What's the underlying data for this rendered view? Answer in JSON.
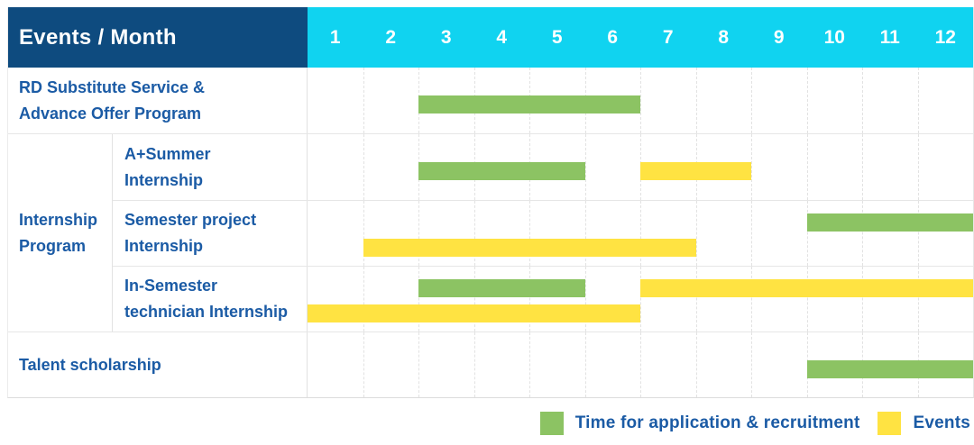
{
  "colors": {
    "header_bg": "#0e4b7f",
    "months_bg": "#10d3f0",
    "header_text": "#ffffff",
    "label_text": "#1b5ba5",
    "grid_line": "#e2e2e2",
    "row_line": "#e6e6e6",
    "recruitment_green": "#8cc363",
    "events_yellow": "#ffe342"
  },
  "header": {
    "label": "Events / Month",
    "months": [
      "1",
      "2",
      "3",
      "4",
      "5",
      "6",
      "7",
      "8",
      "9",
      "10",
      "11",
      "12"
    ]
  },
  "display": {
    "group_label_lines": [
      "Internship",
      "Program"
    ]
  },
  "chart_data": {
    "type": "bar",
    "subtype": "gantt",
    "title": "Events / Month",
    "x_axis": {
      "label": "Month",
      "ticks": [
        1,
        2,
        3,
        4,
        5,
        6,
        7,
        8,
        9,
        10,
        11,
        12
      ],
      "range": [
        1,
        12
      ]
    },
    "grid": true,
    "legend_position": "bottom-right",
    "legend": [
      {
        "key": "recruitment",
        "label": "Time for application & recruitment",
        "color": "#8cc363"
      },
      {
        "key": "events",
        "label": "Events",
        "color": "#ffe342"
      }
    ],
    "rows": [
      {
        "group": null,
        "label": "RD Substitute Service & Advance Offer Program",
        "label_lines": [
          "RD Substitute Service &",
          "Advance Offer Program"
        ],
        "bars": [
          {
            "series": "recruitment",
            "start_month": 3,
            "end_month": 6,
            "lane": 0
          }
        ]
      },
      {
        "group": "Internship Program",
        "label": "A+Summer Internship",
        "label_lines": [
          "A+Summer",
          "Internship"
        ],
        "bars": [
          {
            "series": "recruitment",
            "start_month": 3,
            "end_month": 5,
            "lane": 0
          },
          {
            "series": "events",
            "start_month": 7,
            "end_month": 8,
            "lane": 0
          }
        ]
      },
      {
        "group": "Internship Program",
        "label": "Semester project Internship",
        "label_lines": [
          "Semester project",
          "Internship"
        ],
        "bars": [
          {
            "series": "recruitment",
            "start_month": 10,
            "end_month": 12,
            "lane": 0
          },
          {
            "series": "events",
            "start_month": 2,
            "end_month": 7,
            "lane": 1
          }
        ]
      },
      {
        "group": "Internship Program",
        "label": "In-Semester technician Internship",
        "label_lines": [
          "In-Semester",
          "technician Internship"
        ],
        "bars": [
          {
            "series": "recruitment",
            "start_month": 3,
            "end_month": 5,
            "lane": 0
          },
          {
            "series": "events",
            "start_month": 7,
            "end_month": 12,
            "lane": 0
          },
          {
            "series": "events",
            "start_month": 1,
            "end_month": 6,
            "lane": 1
          }
        ]
      },
      {
        "group": null,
        "label": "Talent scholarship",
        "label_lines": [
          "Talent scholarship"
        ],
        "bars": [
          {
            "series": "recruitment",
            "start_month": 10,
            "end_month": 12,
            "lane": 0
          }
        ]
      }
    ]
  }
}
